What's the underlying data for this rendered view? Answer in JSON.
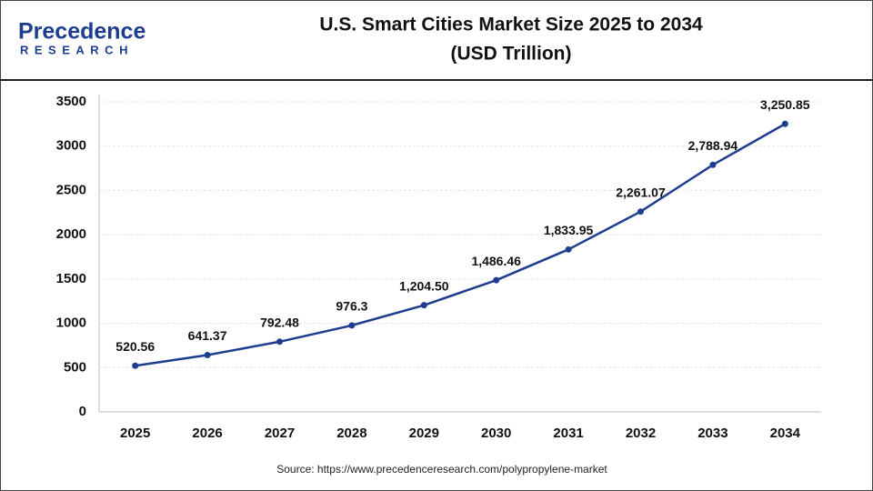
{
  "logo": {
    "name": "Precedence",
    "tagline": "RESEARCH"
  },
  "chart_data": {
    "type": "line",
    "title": "U.S. Smart Cities Market Size 2025 to 2034",
    "subtitle": "(USD Trillion)",
    "categories": [
      "2025",
      "2026",
      "2027",
      "2028",
      "2029",
      "2030",
      "2031",
      "2032",
      "2033",
      "2034"
    ],
    "values": [
      520.56,
      641.37,
      792.48,
      976.3,
      1204.5,
      1486.46,
      1833.95,
      2261.07,
      2788.94,
      3250.85
    ],
    "value_labels": [
      "520.56",
      "641.37",
      "792.48",
      "976.3",
      "1,204.50",
      "1,486.46",
      "1,833.95",
      "2,261.07",
      "2,788.94",
      "3,250.85"
    ],
    "color": "#1f3d8f",
    "ylim": [
      0,
      3500
    ],
    "yticks": [
      0,
      500,
      1000,
      1500,
      2000,
      2500,
      3000,
      3500
    ],
    "grid": true,
    "source": "Source: https://www.precedenceresearch.com/polypropylene-market"
  }
}
